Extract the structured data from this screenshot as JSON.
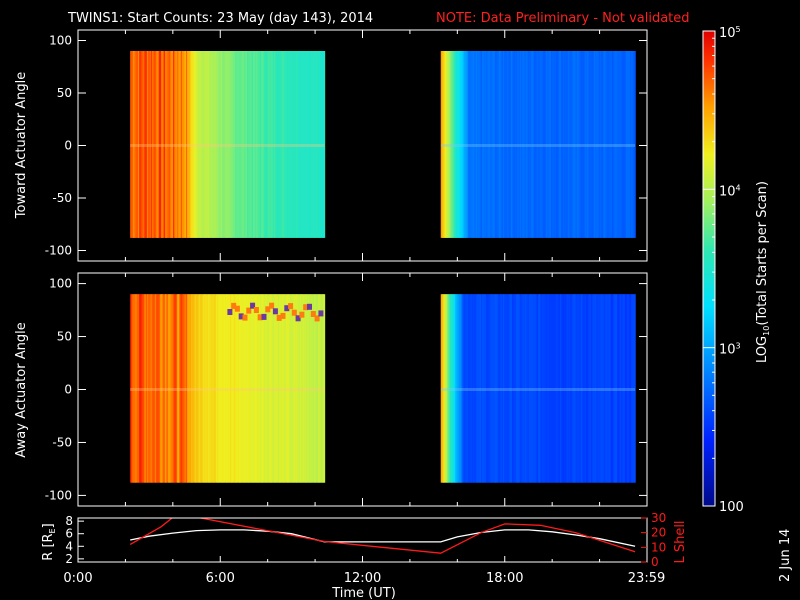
{
  "title": {
    "main": "TWINS1: Start Counts: 23 May (day 143), 2014",
    "note": "NOTE: Data Preliminary - Not validated"
  },
  "colors": {
    "background": "#000000",
    "foreground": "#ffffff",
    "note": "#ff2020",
    "lshell": "#ff1a1a",
    "r_line": "#ffffff"
  },
  "chart_data": [
    {
      "type": "heatmap",
      "name": "toward",
      "ylabel": "Toward Actuator Angle",
      "ylim": [
        -110,
        110
      ],
      "yticks": [
        100,
        50,
        0,
        -50,
        -100
      ],
      "xlim_hours": [
        0,
        24
      ],
      "data_yrange": [
        -88,
        90
      ],
      "data_intervals_hours": [
        [
          2.2,
          10.4
        ],
        [
          15.3,
          23.5
        ]
      ],
      "log10_counts_profile": [
        {
          "hour": 2.2,
          "log10": 4.7
        },
        {
          "hour": 3.0,
          "log10": 4.75
        },
        {
          "hour": 4.5,
          "log10": 4.6
        },
        {
          "hour": 5.0,
          "log10": 4.1
        },
        {
          "hour": 6.5,
          "log10": 3.8
        },
        {
          "hour": 8.0,
          "log10": 3.65
        },
        {
          "hour": 10.4,
          "log10": 3.5
        },
        {
          "hour": 15.3,
          "log10": 4.6
        },
        {
          "hour": 15.8,
          "log10": 3.7
        },
        {
          "hour": 16.5,
          "log10": 2.75
        },
        {
          "hour": 23.5,
          "log10": 2.7
        }
      ]
    },
    {
      "type": "heatmap",
      "name": "away",
      "ylabel": "Away Actuator Angle",
      "ylim": [
        -110,
        110
      ],
      "yticks": [
        100,
        50,
        0,
        -50,
        -100
      ],
      "xlim_hours": [
        0,
        24
      ],
      "data_yrange": [
        -88,
        90
      ],
      "data_intervals_hours": [
        [
          2.2,
          10.4
        ],
        [
          15.3,
          23.5
        ]
      ],
      "log10_counts_profile": [
        {
          "hour": 2.2,
          "log10": 4.75
        },
        {
          "hour": 3.5,
          "log10": 4.7
        },
        {
          "hour": 4.5,
          "log10": 4.6
        },
        {
          "hour": 5.0,
          "log10": 4.35
        },
        {
          "hour": 7.0,
          "log10": 4.2
        },
        {
          "hour": 10.4,
          "log10": 4.05
        },
        {
          "hour": 15.3,
          "log10": 4.55
        },
        {
          "hour": 15.8,
          "log10": 3.4
        },
        {
          "hour": 16.3,
          "log10": 2.6
        },
        {
          "hour": 23.5,
          "log10": 2.55
        }
      ]
    },
    {
      "type": "line",
      "name": "orbit",
      "ylabel": "R [R",
      "ylabel_sub": "E",
      "ylabel_end": "]",
      "ylim": [
        1.5,
        8.5
      ],
      "yticks": [
        8,
        6,
        4,
        2
      ],
      "y2label": "L Shell",
      "y2lim": [
        0,
        30
      ],
      "y2ticks": [
        30,
        20,
        10,
        0
      ],
      "xlabel": "Time (UT)",
      "xticks": [
        "0:00",
        "6:00",
        "12:00",
        "18:00",
        "23:59"
      ],
      "xtick_hours": [
        0,
        6,
        12,
        18,
        23.98
      ],
      "series": [
        {
          "name": "R",
          "axis": "left",
          "x": [
            2.2,
            3,
            4,
            5,
            6,
            7,
            8,
            9,
            10.4,
            11,
            12,
            13,
            14,
            15.3,
            16,
            17,
            18,
            19,
            20,
            21,
            22,
            23.5
          ],
          "y": [
            5.0,
            5.6,
            6.1,
            6.5,
            6.6,
            6.6,
            6.4,
            6.0,
            4.7,
            4.7,
            4.7,
            4.7,
            4.7,
            4.7,
            5.5,
            6.2,
            6.6,
            6.6,
            6.3,
            5.8,
            5.2,
            4.0
          ]
        },
        {
          "name": "L Shell",
          "axis": "right",
          "x": [
            2.2,
            3.5,
            4.2,
            10.4,
            15.3,
            17,
            18,
            19.5,
            21,
            23.5
          ],
          "y": [
            12,
            24,
            33,
            14,
            6,
            20,
            26,
            25,
            20,
            7
          ]
        }
      ]
    },
    {
      "type": "colorbar",
      "name": "colorbar",
      "label_main": "LOG",
      "label_sub": "10",
      "label_end": "(Total Starts per Scan)",
      "range_log10": [
        2,
        5
      ],
      "ticks": [
        {
          "log10": 5,
          "base": "10",
          "exp": "5"
        },
        {
          "log10": 4,
          "base": "10",
          "exp": "4"
        },
        {
          "log10": 3,
          "base": "10",
          "exp": "3"
        },
        {
          "log10": 2,
          "text": "100"
        }
      ]
    }
  ],
  "footer": {
    "date_stamp": "2 Jun 14"
  }
}
